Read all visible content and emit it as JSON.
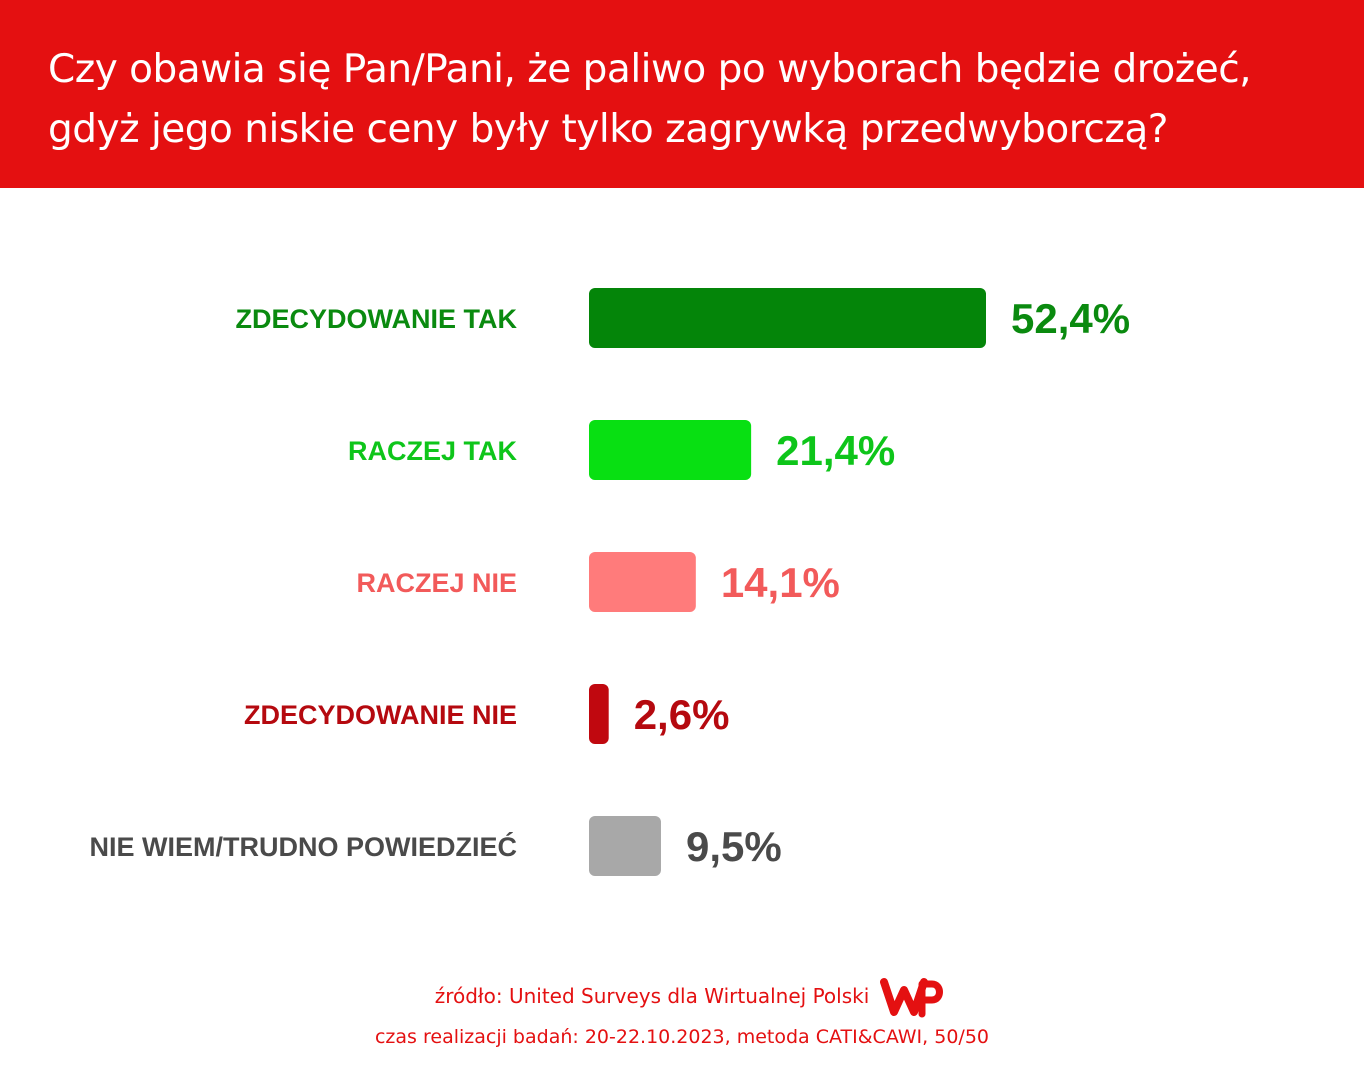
{
  "header": {
    "title": "Czy obawia się Pan/Pani, że paliwo po wyborach będzie drożeć,\ngdyż jego niskie ceny były tylko zagrywką przedwyborczą?"
  },
  "chart_data": {
    "type": "bar",
    "orientation": "horizontal",
    "title": "Czy obawia się Pan/Pani, że paliwo po wyborach będzie drożeć, gdyż jego niskie ceny były tylko zagrywką przedwyborczą?",
    "categories": [
      "ZDECYDOWANIE TAK",
      "RACZEJ TAK",
      "RACZEJ NIE",
      "ZDECYDOWANIE NIE",
      "NIE WIEM/TRUDNO POWIEDZIEĆ"
    ],
    "values": [
      52.4,
      21.4,
      14.1,
      2.6,
      9.5
    ],
    "value_labels": [
      "52,4%",
      "21,4%",
      "14,1%",
      "2,6%",
      "9,5%"
    ],
    "colors": [
      "#048509",
      "#08e012",
      "#ff7b7b",
      "#c0080f",
      "#a8a8a8"
    ],
    "label_colors": [
      "#0a8a0f",
      "#0ec51a",
      "#f25a5a",
      "#b5090f",
      "#4a4a4a"
    ],
    "xlim": [
      0,
      52.4
    ],
    "grid": false,
    "legend": "none"
  },
  "footer": {
    "source": "źródło: United Surveys dla Wirtualnej Polski",
    "method": "czas realizacji badań: 20-22.10.2023, metoda CATI&CAWI, 50/50",
    "logo": "wp-logo"
  }
}
